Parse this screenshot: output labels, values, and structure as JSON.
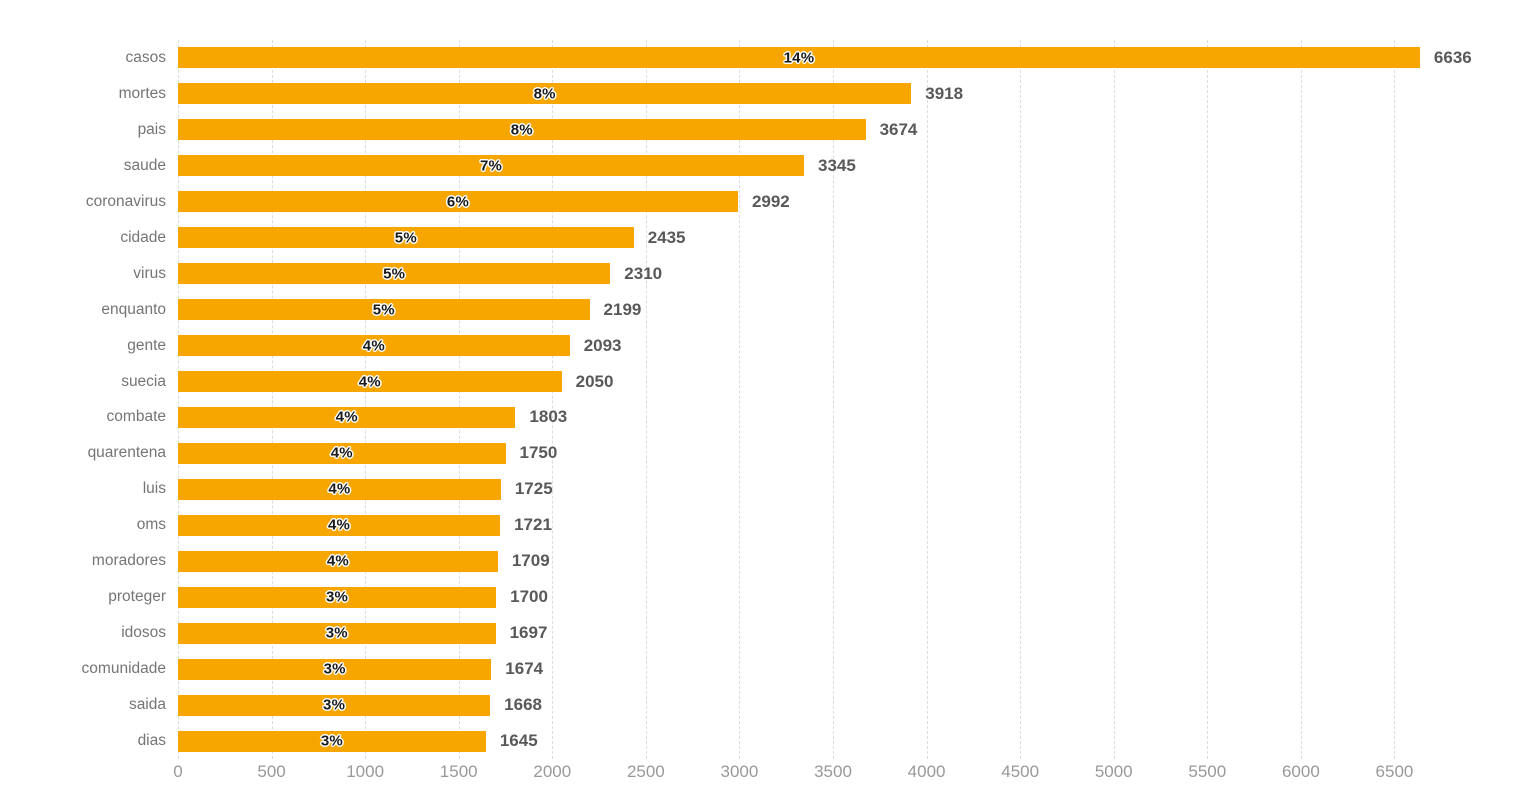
{
  "chart_data": {
    "type": "bar",
    "orientation": "horizontal",
    "title": "",
    "xlabel": "",
    "ylabel": "",
    "categories": [
      "casos",
      "mortes",
      "pais",
      "saude",
      "coronavirus",
      "cidade",
      "virus",
      "enquanto",
      "gente",
      "suecia",
      "combate",
      "quarentena",
      "luis",
      "oms",
      "moradores",
      "proteger",
      "idosos",
      "comunidade",
      "saida",
      "dias"
    ],
    "values": [
      6636,
      3918,
      3674,
      3345,
      2992,
      2435,
      2310,
      2199,
      2093,
      2050,
      1803,
      1750,
      1725,
      1721,
      1709,
      1700,
      1697,
      1674,
      1668,
      1645
    ],
    "percent_labels": [
      "14%",
      "8%",
      "8%",
      "7%",
      "6%",
      "5%",
      "5%",
      "5%",
      "4%",
      "4%",
      "4%",
      "4%",
      "4%",
      "4%",
      "4%",
      "3%",
      "3%",
      "3%",
      "3%",
      "3%"
    ],
    "value_labels": [
      "6636",
      "3918",
      "3674",
      "3345",
      "2992",
      "2435",
      "2310",
      "2199",
      "2093",
      "2050",
      "1803",
      "1750",
      "1725",
      "1721",
      "1709",
      "1700",
      "1697",
      "1674",
      "1668",
      "1645"
    ],
    "x_ticks": [
      0,
      500,
      1000,
      1500,
      2000,
      2500,
      3000,
      3500,
      4000,
      4500,
      5000,
      5500,
      6000,
      6500
    ],
    "xlim": [
      0,
      7080
    ],
    "grid": "vertical-dashed",
    "legend": "none",
    "colors": {
      "bar": "#F7A600",
      "percent_label": "#1a1a1a",
      "value_label": "#595959",
      "category_label": "#757575",
      "tick_label": "#999999",
      "gridline": "#dcdcdc",
      "background": "#ffffff"
    }
  }
}
